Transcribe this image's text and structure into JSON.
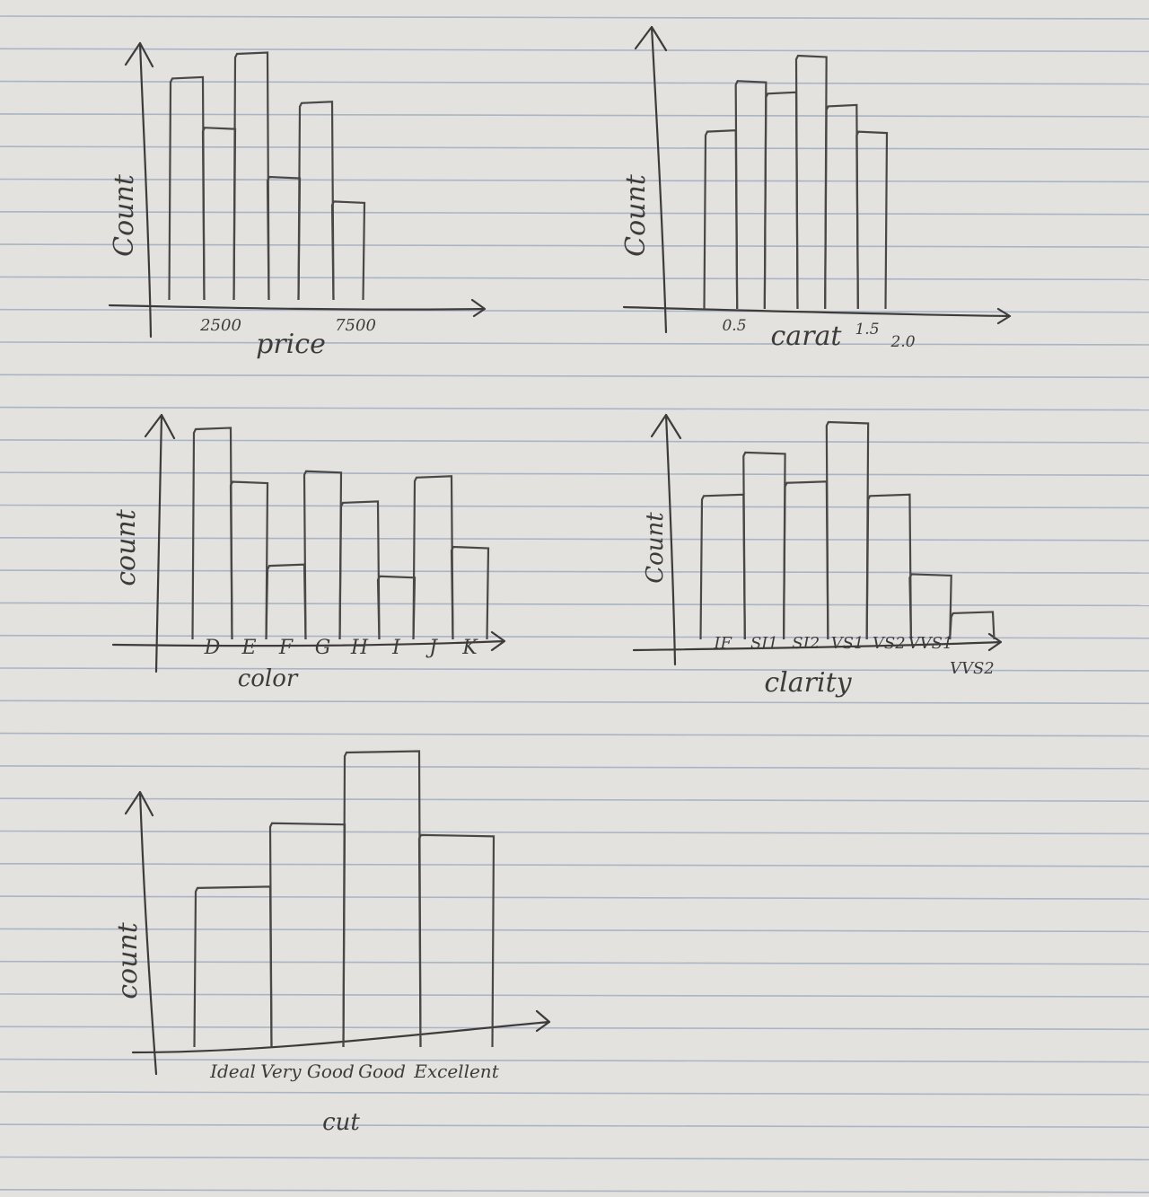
{
  "paper": {
    "background": "#e4e2df",
    "ruling_color": "#a9b4c6",
    "ink_color": "#3e3c3a"
  },
  "chart_data": [
    {
      "type": "bar",
      "style": "hand-drawn histogram",
      "xlabel": "price",
      "ylabel": "Count",
      "x_ticks": [
        "2500",
        "7500"
      ],
      "values": [
        9,
        7,
        10,
        5,
        8,
        4
      ],
      "ylim": [
        0,
        10.5
      ]
    },
    {
      "type": "bar",
      "style": "hand-drawn histogram",
      "xlabel": "carat",
      "ylabel": "Count",
      "x_ticks": [
        "0.5",
        "1.5",
        "2.0"
      ],
      "values": [
        7,
        9,
        8.5,
        10,
        8,
        7
      ],
      "ylim": [
        0,
        10.5
      ]
    },
    {
      "type": "bar",
      "xlabel": "color",
      "ylabel": "count",
      "categories": [
        "D",
        "E",
        "F",
        "G",
        "H",
        "I",
        "J",
        "K"
      ],
      "values": [
        10,
        7.5,
        3.5,
        8,
        6.5,
        3,
        7.7,
        4.4
      ],
      "ylim": [
        0,
        10.5
      ]
    },
    {
      "type": "bar",
      "xlabel": "clarity",
      "ylabel": "Count",
      "categories": [
        "IF",
        "SI1",
        "SI2",
        "VS1",
        "VS2",
        "VVS1",
        "VVS2"
      ],
      "values": [
        6.6,
        8.6,
        7.2,
        10,
        6.6,
        3,
        1.2
      ],
      "ylim": [
        0,
        10.5
      ]
    },
    {
      "type": "bar",
      "xlabel": "cut",
      "ylabel": "count",
      "categories": [
        "Ideal",
        "Very Good",
        "Good",
        "Excellent"
      ],
      "values": [
        5.4,
        7.6,
        10,
        7.2
      ],
      "ylim": [
        0,
        10.5
      ]
    }
  ]
}
